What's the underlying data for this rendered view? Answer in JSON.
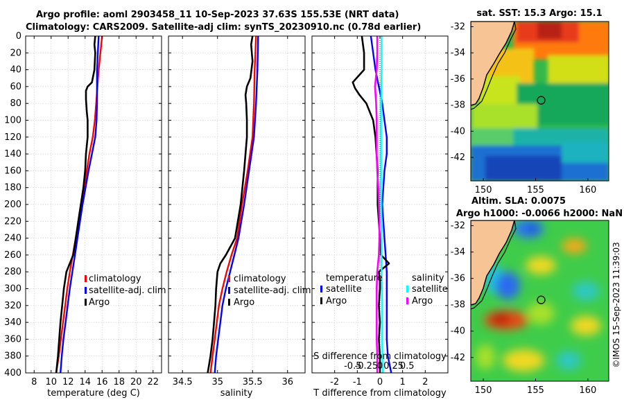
{
  "header": {
    "title_line1": "Argo profile: aoml 2903458_11 10-Sep-2023 37.63S 155.53E (NRT data)",
    "title_line2": "Climatology: CARS2009. Satellite-adj clim: synTS_20230910.nc (0.78d earlier)"
  },
  "watermark": "©IMOS 15-Sep-2023 11:39:03",
  "colors": {
    "climatology": "#ff0000",
    "satellite": "#0000ff",
    "argo": "#000000",
    "sal_satellite": "#00ffff",
    "sal_argo": "#ff00ff",
    "land": "#f7c496",
    "grid": "#d0d0d0"
  },
  "chart_data": [
    {
      "id": "temperature",
      "type": "line",
      "xlabel": "temperature (deg C)",
      "ylabel": "",
      "xlim": [
        7,
        23
      ],
      "ylim": [
        400,
        0
      ],
      "xticks": [
        8,
        10,
        12,
        14,
        16,
        18,
        20,
        22
      ],
      "yticks": [
        0,
        20,
        40,
        60,
        80,
        100,
        120,
        140,
        160,
        180,
        200,
        220,
        240,
        260,
        280,
        300,
        320,
        340,
        360,
        380,
        400
      ],
      "grid": true,
      "legend": {
        "position": "lower-right",
        "entries": [
          "climatology",
          "satellite-adj. clim",
          "Argo"
        ]
      },
      "series": [
        {
          "name": "climatology",
          "color": "#ff0000",
          "depth": [
            0,
            20,
            40,
            60,
            80,
            100,
            120,
            140,
            160,
            180,
            200,
            220,
            240,
            260,
            280,
            300,
            320,
            340,
            360,
            380,
            400
          ],
          "values": [
            16.0,
            15.8,
            15.6,
            15.45,
            15.3,
            15.15,
            14.9,
            14.5,
            14.2,
            13.9,
            13.6,
            13.25,
            12.9,
            12.55,
            12.2,
            11.9,
            11.65,
            11.4,
            11.15,
            10.9,
            10.6
          ]
        },
        {
          "name": "satellite-adj. clim",
          "color": "#0000ff",
          "depth": [
            0,
            20,
            40,
            60,
            80,
            100,
            120,
            140,
            160,
            180,
            200,
            220,
            240,
            260,
            280,
            300,
            320,
            340,
            360,
            380,
            400
          ],
          "values": [
            15.6,
            15.5,
            15.4,
            15.4,
            15.4,
            15.35,
            15.2,
            14.8,
            14.4,
            14.05,
            13.7,
            13.4,
            13.1,
            12.8,
            12.5,
            12.2,
            11.95,
            11.7,
            11.45,
            11.25,
            11.1
          ]
        },
        {
          "name": "Argo",
          "color": "#000000",
          "depth": [
            0,
            10,
            20,
            40,
            55,
            60,
            65,
            75,
            90,
            100,
            120,
            140,
            160,
            180,
            200,
            220,
            240,
            260,
            270,
            280,
            300,
            320,
            340,
            360,
            380,
            400
          ],
          "values": [
            15.2,
            15.1,
            15.2,
            15.1,
            14.8,
            14.3,
            14.1,
            14.1,
            14.2,
            14.3,
            14.3,
            14.1,
            14.0,
            13.8,
            13.5,
            13.2,
            12.9,
            12.6,
            12.2,
            11.8,
            11.5,
            11.3,
            11.1,
            10.95,
            10.8,
            10.6
          ]
        }
      ]
    },
    {
      "id": "salinity",
      "type": "line",
      "xlabel": "salinity",
      "ylabel": "",
      "xlim": [
        34.3,
        36.25
      ],
      "ylim": [
        400,
        0
      ],
      "xticks": [
        34.5,
        35,
        35.5,
        36
      ],
      "xtick_labels": [
        "34.5",
        "35",
        "35.5",
        "36"
      ],
      "grid": true,
      "legend": {
        "position": "lower-right",
        "entries": [
          "climatology",
          "satellite-adj. clim",
          "Argo"
        ]
      },
      "series": [
        {
          "name": "climatology",
          "color": "#ff0000",
          "depth": [
            0,
            40,
            80,
            120,
            160,
            200,
            240,
            260,
            280,
            300,
            320,
            340,
            360,
            380,
            400
          ],
          "values": [
            35.55,
            35.53,
            35.52,
            35.5,
            35.43,
            35.35,
            35.28,
            35.2,
            35.13,
            35.07,
            35.02,
            34.99,
            34.96,
            34.93,
            34.9
          ]
        },
        {
          "name": "satellite-adj. clim",
          "color": "#0000ff",
          "depth": [
            0,
            40,
            80,
            120,
            160,
            200,
            240,
            260,
            280,
            300,
            320,
            340,
            360,
            380,
            400
          ],
          "values": [
            35.58,
            35.57,
            35.55,
            35.52,
            35.45,
            35.38,
            35.3,
            35.24,
            35.18,
            35.12,
            35.07,
            35.04,
            35.01,
            34.98,
            34.96
          ]
        },
        {
          "name": "Argo",
          "color": "#000000",
          "depth": [
            0,
            10,
            30,
            50,
            60,
            70,
            80,
            100,
            120,
            140,
            160,
            200,
            240,
            260,
            270,
            280,
            300,
            320,
            340,
            360,
            380,
            400
          ],
          "values": [
            35.5,
            35.48,
            35.5,
            35.47,
            35.42,
            35.4,
            35.41,
            35.42,
            35.42,
            35.4,
            35.38,
            35.33,
            35.25,
            35.12,
            35.04,
            35.0,
            34.98,
            34.97,
            34.95,
            34.93,
            34.9,
            34.86
          ]
        }
      ]
    },
    {
      "id": "differences",
      "type": "line",
      "xlabel": "T difference from climatology",
      "top_label": "S difference from climatology",
      "xlim": [
        -3,
        3
      ],
      "ylim": [
        400,
        0
      ],
      "xticks": [
        -2,
        -1,
        0,
        1,
        2
      ],
      "xtick_labels": [
        "-2",
        "-1",
        "0",
        "1",
        "2"
      ],
      "secondary_xticks": [
        -0.5,
        -0.25,
        0,
        0.25,
        0.5
      ],
      "secondary_xtick_labels": [
        "-0.5",
        "-0.25",
        "0",
        "0.25",
        "0.5"
      ],
      "grid": true,
      "legend_temperature": {
        "heading": "temperature",
        "entries": [
          "satellite",
          "Argo"
        ]
      },
      "legend_salinity": {
        "heading": "salinity",
        "entries": [
          "satellite",
          "Argo"
        ]
      },
      "series": [
        {
          "name": "T satellite",
          "color": "#0000ff",
          "depth": [
            0,
            20,
            40,
            60,
            80,
            100,
            120,
            140,
            160,
            180,
            200,
            220,
            240,
            260,
            280,
            300,
            320,
            340,
            360,
            380,
            400
          ],
          "values": [
            -0.4,
            -0.3,
            -0.2,
            -0.05,
            0.1,
            0.2,
            0.3,
            0.3,
            0.2,
            0.15,
            0.1,
            0.15,
            0.2,
            0.25,
            0.3,
            0.3,
            0.3,
            0.3,
            0.3,
            0.35,
            0.5
          ]
        },
        {
          "name": "T Argo",
          "color": "#000000",
          "depth": [
            0,
            20,
            40,
            55,
            62,
            70,
            80,
            100,
            120,
            140,
            160,
            180,
            200,
            220,
            240,
            260,
            270,
            280,
            290,
            300,
            320,
            340,
            360,
            380,
            400
          ],
          "values": [
            -0.8,
            -0.7,
            -0.7,
            -1.2,
            -1.1,
            -0.9,
            -0.6,
            -0.3,
            -0.2,
            -0.15,
            -0.1,
            -0.1,
            -0.1,
            -0.05,
            0.0,
            0.05,
            0.4,
            -0.05,
            0.0,
            0.0,
            -0.05,
            0.0,
            -0.05,
            0.0,
            0.0
          ]
        },
        {
          "name": "S satellite",
          "color": "#00ffff",
          "depth": [
            0,
            40,
            80,
            120,
            160,
            200,
            240,
            280,
            320,
            360,
            400
          ],
          "s_values": [
            0.03,
            0.03,
            0.02,
            0.02,
            0.02,
            0.02,
            0.03,
            0.03,
            0.04,
            0.04,
            0.05
          ]
        },
        {
          "name": "S Argo",
          "color": "#ff00ff",
          "depth": [
            0,
            20,
            40,
            60,
            80,
            100,
            120,
            140,
            160,
            180,
            200,
            220,
            240,
            260,
            280,
            300,
            320,
            340,
            360,
            380,
            400
          ],
          "s_values": [
            -0.05,
            -0.05,
            -0.06,
            -0.09,
            -0.07,
            -0.06,
            -0.06,
            -0.06,
            -0.05,
            -0.03,
            -0.02,
            -0.01,
            -0.01,
            -0.02,
            -0.05,
            -0.06,
            -0.06,
            -0.06,
            -0.06,
            -0.05,
            -0.05
          ]
        }
      ]
    },
    {
      "id": "sst_map",
      "type": "heatmap",
      "title": "sat. SST: 15.3 Argo: 15.1",
      "xticks": [
        150,
        155,
        160
      ],
      "yticks": [
        -32,
        -34,
        -36,
        -38,
        -40,
        -42
      ],
      "xlim": [
        148.8,
        162
      ],
      "ylim": [
        -43.8,
        -31.6
      ],
      "argo_position": {
        "lon": 155.53,
        "lat": -37.63
      }
    },
    {
      "id": "sla_map",
      "type": "heatmap",
      "title_line1": "Altim. SLA: 0.0075",
      "title_line2": "Argo h1000: -0.0066 h2000: NaN",
      "xticks": [
        150,
        155,
        160
      ],
      "yticks": [
        -32,
        -34,
        -36,
        -38,
        -40,
        -42
      ],
      "xlim": [
        148.8,
        162
      ],
      "ylim": [
        -43.8,
        -31.6
      ],
      "argo_position": {
        "lon": 155.53,
        "lat": -37.63
      }
    }
  ]
}
